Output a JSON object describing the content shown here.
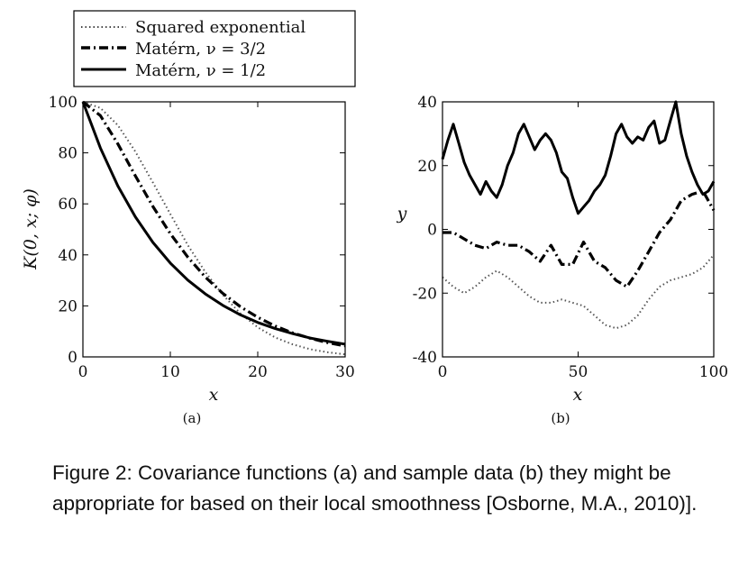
{
  "caption": "Figure 2: Covariance functions (a) and sample data (b) they might be appropriate for based on their local smoothness [Osborne, M.A., 2010)].",
  "legend": [
    {
      "label": "Squared exponential",
      "style": "dotted"
    },
    {
      "label": "Matérn, ν = 3/2",
      "style": "dashdot"
    },
    {
      "label": "Matérn, ν = 1/2",
      "style": "solid"
    }
  ],
  "chart_data": [
    {
      "type": "line",
      "panel_label": "(a)",
      "xlabel": "x",
      "ylabel": "K(0, x; φ)",
      "xlim": [
        0,
        30
      ],
      "ylim": [
        0,
        100
      ],
      "xticks": [
        "0",
        "10",
        "20",
        "30"
      ],
      "yticks": [
        "0",
        "20",
        "40",
        "60",
        "80",
        "100"
      ],
      "grid": false,
      "series": [
        {
          "name": "Squared exponential",
          "style": "dotted",
          "x": [
            0,
            2,
            4,
            6,
            8,
            10,
            12,
            14,
            16,
            18,
            20,
            22,
            24,
            26,
            28,
            30
          ],
          "y": [
            100,
            97.6,
            90.8,
            80.5,
            68.4,
            56.0,
            43.8,
            33.3,
            24.3,
            17.1,
            11.6,
            7.6,
            4.9,
            3.0,
            1.8,
            1.0
          ]
        },
        {
          "name": "Matérn, ν = 3/2",
          "style": "dashdot",
          "x": [
            0,
            2,
            4,
            6,
            8,
            10,
            12,
            14,
            16,
            18,
            20,
            22,
            24,
            26,
            28,
            30
          ],
          "y": [
            100,
            94.6,
            83.5,
            71.0,
            59.0,
            48.3,
            39.1,
            31.3,
            24.9,
            19.7,
            15.5,
            12.1,
            9.4,
            7.3,
            5.6,
            4.3
          ]
        },
        {
          "name": "Matérn, ν = 1/2",
          "style": "solid",
          "x": [
            0,
            2,
            4,
            6,
            8,
            10,
            12,
            14,
            16,
            18,
            20,
            22,
            24,
            26,
            28,
            30
          ],
          "y": [
            100,
            81.9,
            67.0,
            54.9,
            44.9,
            36.8,
            30.1,
            24.7,
            20.2,
            16.5,
            13.5,
            11.1,
            9.1,
            7.4,
            6.1,
            5.0
          ]
        }
      ]
    },
    {
      "type": "line",
      "panel_label": "(b)",
      "xlabel": "x",
      "ylabel": "y",
      "xlim": [
        0,
        100
      ],
      "ylim": [
        -40,
        40
      ],
      "xticks": [
        "0",
        "50",
        "100"
      ],
      "yticks": [
        "-40",
        "-20",
        "0",
        "20",
        "40"
      ],
      "grid": false,
      "series": [
        {
          "name": "Squared exponential",
          "style": "dotted",
          "x": [
            0,
            4,
            8,
            12,
            16,
            20,
            24,
            28,
            32,
            36,
            40,
            44,
            48,
            52,
            56,
            60,
            64,
            68,
            72,
            76,
            80,
            84,
            88,
            92,
            96,
            100
          ],
          "y": [
            -15,
            -18,
            -20,
            -18,
            -15,
            -13,
            -15,
            -18,
            -21,
            -23,
            -23,
            -22,
            -23,
            -24,
            -27,
            -30,
            -31,
            -30,
            -27,
            -22,
            -18,
            -16,
            -15,
            -14,
            -12,
            -8
          ]
        },
        {
          "name": "Matérn, ν = 3/2",
          "style": "dashdot",
          "x": [
            0,
            4,
            8,
            12,
            16,
            20,
            24,
            28,
            32,
            36,
            40,
            44,
            48,
            52,
            56,
            60,
            64,
            68,
            72,
            76,
            80,
            84,
            88,
            92,
            96,
            100
          ],
          "y": [
            -1,
            -1,
            -3,
            -5,
            -6,
            -4,
            -5,
            -5,
            -7,
            -10,
            -5,
            -11,
            -11,
            -4,
            -10,
            -12,
            -16,
            -18,
            -13,
            -7,
            -1,
            3,
            9,
            11,
            12,
            6
          ]
        },
        {
          "name": "Matérn, ν = 1/2",
          "style": "solid",
          "x": [
            0,
            2,
            4,
            6,
            8,
            10,
            12,
            14,
            16,
            18,
            20,
            22,
            24,
            26,
            28,
            30,
            32,
            34,
            36,
            38,
            40,
            42,
            44,
            46,
            48,
            50,
            52,
            54,
            56,
            58,
            60,
            62,
            64,
            66,
            68,
            70,
            72,
            74,
            76,
            78,
            80,
            82,
            84,
            86,
            88,
            90,
            92,
            94,
            96,
            98,
            100
          ],
          "y": [
            22,
            28,
            33,
            27,
            21,
            17,
            14,
            11,
            15,
            12,
            10,
            14,
            20,
            24,
            30,
            33,
            29,
            25,
            28,
            30,
            28,
            24,
            18,
            16,
            10,
            5,
            7,
            9,
            12,
            14,
            17,
            23,
            30,
            33,
            29,
            27,
            29,
            28,
            32,
            34,
            27,
            28,
            34,
            40,
            30,
            23,
            18,
            14,
            11,
            12,
            15
          ]
        }
      ]
    }
  ]
}
